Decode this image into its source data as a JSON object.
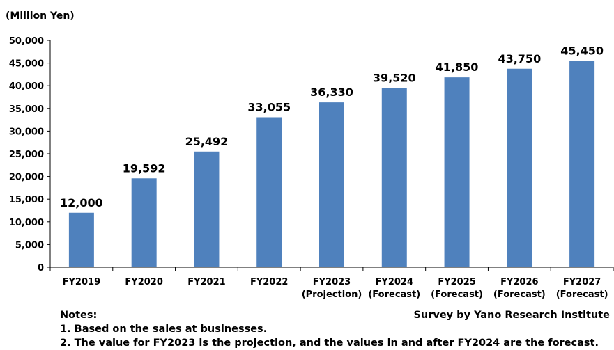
{
  "chart_data": {
    "type": "bar",
    "unit_label": "(Million Yen)",
    "categories": [
      [
        "FY2019"
      ],
      [
        "FY2020"
      ],
      [
        "FY2021"
      ],
      [
        "FY2022"
      ],
      [
        "FY2023",
        "(Projection)"
      ],
      [
        "FY2024",
        "(Forecast)"
      ],
      [
        "FY2025",
        "(Forecast)"
      ],
      [
        "FY2026",
        "(Forecast)"
      ],
      [
        "FY2027",
        "(Forecast)"
      ]
    ],
    "values": [
      12000,
      19592,
      25492,
      33055,
      36330,
      39520,
      41850,
      43750,
      45450
    ],
    "value_labels": [
      "12,000",
      "19,592",
      "25,492",
      "33,055",
      "36,330",
      "39,520",
      "41,850",
      "43,750",
      "45,450"
    ],
    "ylim": [
      0,
      50000
    ],
    "yticks": [
      0,
      5000,
      10000,
      15000,
      20000,
      25000,
      30000,
      35000,
      40000,
      45000,
      50000
    ],
    "ytick_labels": [
      "0",
      "5,000",
      "10,000",
      "15,000",
      "20,000",
      "25,000",
      "30,000",
      "35,000",
      "40,000",
      "45,000",
      "50,000"
    ],
    "grid": false,
    "bar_color": "#4f81bd"
  },
  "notes": {
    "heading": "Notes:",
    "items": [
      "1. Based on the sales at businesses.",
      "2. The value for FY2023 is the projection, and the values in and after FY2024 are the forecast."
    ]
  },
  "source": "Survey by Yano Research Institute"
}
